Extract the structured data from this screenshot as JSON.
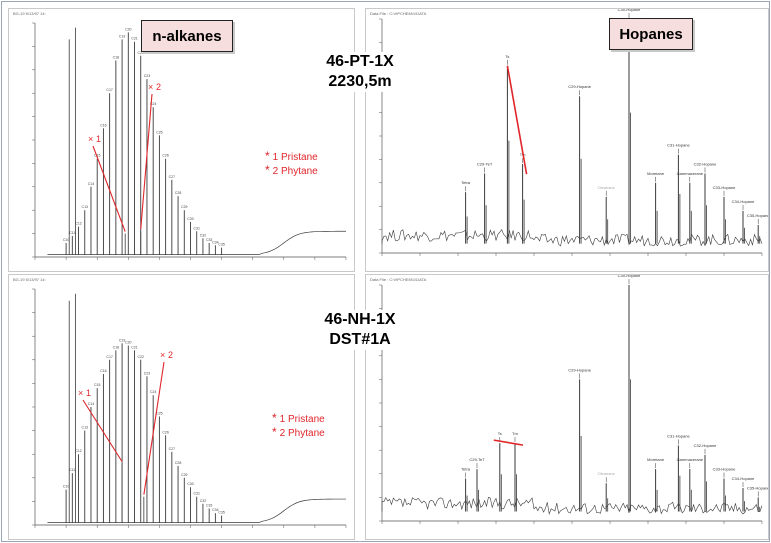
{
  "labels": {
    "nalkanes": "n-alkanes",
    "hopanes": "Hopanes",
    "well1_line1": "46-PT-1X",
    "well1_line2": "2230,5m",
    "well2_line1": "46-NH-1X",
    "well2_line2": "DST#1A"
  },
  "legend": {
    "item1": "1  Pristane",
    "item2": "2  Phytane"
  },
  "markers": {
    "m1": "1",
    "m2": "2"
  },
  "peak_names": {
    "tetra": "Tetra",
    "ts": "Ts",
    "tm": "Tm",
    "oleanane": "Oleanane",
    "moretane": "Moretane",
    "gammacerane": "Gamma -cerane",
    "c29": "C29-Hopane",
    "c30": "C30-Hopane",
    "c31": "C31-Hopane",
    "c32": "C32-Hopane",
    "c33": "C33-Hopane",
    "c34": "C34-Hopane",
    "c35": "C35-Hopane"
  },
  "colors": {
    "annotation": "#e0262b",
    "trace": "#3a3a3a",
    "tagbox_fill": "#f7dede"
  },
  "chart_data": [
    {
      "type": "line",
      "title": "",
      "xlabel": "",
      "ylabel": "",
      "xlim": [
        0,
        100
      ],
      "ylim": [
        0,
        100
      ],
      "peaks_x": [
        10,
        12,
        14,
        16,
        18,
        20,
        22,
        24,
        26,
        28,
        30,
        32,
        34,
        36,
        38,
        40,
        42,
        44,
        46,
        48,
        50,
        52,
        54,
        56,
        58,
        60
      ],
      "peaks_y": [
        6,
        9,
        13,
        20,
        30,
        42,
        55,
        70,
        84,
        93,
        96,
        92,
        86,
        76,
        64,
        52,
        42,
        33,
        26,
        20,
        15,
        11,
        8,
        6,
        5,
        4
      ],
      "peak_labels": [
        "C10",
        "C11",
        "C12",
        "C13",
        "C14",
        "C15",
        "C16",
        "C17",
        "C18",
        "C19",
        "C20",
        "C21",
        "C22",
        "C23",
        "C24",
        "C25",
        "C26",
        "C27",
        "C28",
        "C29",
        "C30",
        "C31",
        "C32",
        "C33",
        "C34",
        "C35"
      ],
      "pristane": [
        29,
        10
      ],
      "phytane": [
        34,
        11
      ],
      "tall_peaks": [
        [
          11,
          93
        ],
        [
          13,
          98
        ]
      ]
    },
    {
      "type": "line",
      "title": "",
      "xlabel": "",
      "ylabel": "",
      "xlim": [
        0,
        100
      ],
      "ylim": [
        0,
        100
      ],
      "peaks": [
        {
          "x": 22,
          "y": 26,
          "label": "Tetra"
        },
        {
          "x": 27,
          "y": 34,
          "label": "C29-TeT"
        },
        {
          "x": 33,
          "y": 80,
          "label": "Ts"
        },
        {
          "x": 37,
          "y": 38,
          "label": "Tm"
        },
        {
          "x": 52,
          "y": 67,
          "label": "C29-Hopane"
        },
        {
          "x": 59,
          "y": 24,
          "label": "Oleanane"
        },
        {
          "x": 65,
          "y": 100,
          "label": "C30-Hopane"
        },
        {
          "x": 72,
          "y": 30,
          "label": "Moretane"
        },
        {
          "x": 78,
          "y": 42,
          "label": "C31-Hopane"
        },
        {
          "x": 81,
          "y": 30,
          "label": "Gammacerane"
        },
        {
          "x": 85,
          "y": 34,
          "label": "C32-Hopane"
        },
        {
          "x": 90,
          "y": 24,
          "label": "C33-Hopane"
        },
        {
          "x": 95,
          "y": 18,
          "label": "C34-Hopane"
        },
        {
          "x": 99,
          "y": 12,
          "label": "C35-Hopane"
        }
      ]
    },
    {
      "type": "line",
      "title": "",
      "xlabel": "",
      "ylabel": "",
      "xlim": [
        0,
        100
      ],
      "ylim": [
        0,
        100
      ],
      "peaks_x": [
        10,
        12,
        14,
        16,
        18,
        20,
        22,
        24,
        26,
        28,
        30,
        32,
        34,
        36,
        38,
        40,
        42,
        44,
        46,
        48,
        50,
        52,
        54,
        56,
        58,
        60
      ],
      "peaks_y": [
        15,
        22,
        30,
        40,
        50,
        58,
        64,
        70,
        74,
        77,
        76,
        74,
        70,
        63,
        55,
        46,
        38,
        31,
        25,
        20,
        16,
        12,
        9,
        7,
        5,
        4
      ],
      "peak_labels": [
        "C10",
        "C11",
        "C12",
        "C13",
        "C14",
        "C15",
        "C16",
        "C17",
        "C18",
        "C19",
        "C20",
        "C21",
        "C22",
        "C23",
        "C24",
        "C25",
        "C26",
        "C27",
        "C28",
        "C29",
        "C30",
        "C31",
        "C32",
        "C33",
        "C34",
        "C35"
      ],
      "pristane": [
        28,
        26
      ],
      "phytane": [
        35,
        12
      ],
      "tall_peaks": [
        [
          11,
          95
        ],
        [
          13,
          98
        ]
      ]
    },
    {
      "type": "line",
      "title": "",
      "xlabel": "",
      "ylabel": "",
      "xlim": [
        0,
        100
      ],
      "ylim": [
        0,
        100
      ],
      "peaks": [
        {
          "x": 22,
          "y": 18,
          "label": "Tetra"
        },
        {
          "x": 25,
          "y": 22,
          "label": "C29-TeT"
        },
        {
          "x": 31,
          "y": 33,
          "label": "Ts"
        },
        {
          "x": 35,
          "y": 33,
          "label": "Tm"
        },
        {
          "x": 52,
          "y": 60,
          "label": "C29-Hopane"
        },
        {
          "x": 59,
          "y": 16,
          "label": "Oleanane"
        },
        {
          "x": 65,
          "y": 100,
          "label": "C30-Hopane"
        },
        {
          "x": 72,
          "y": 22,
          "label": "Moretane"
        },
        {
          "x": 78,
          "y": 32,
          "label": "C31-Hopane"
        },
        {
          "x": 81,
          "y": 22,
          "label": "Gammacerane"
        },
        {
          "x": 85,
          "y": 28,
          "label": "C32-Hopane"
        },
        {
          "x": 90,
          "y": 18,
          "label": "C33-Hopane"
        },
        {
          "x": 95,
          "y": 14,
          "label": "C34-Hopane"
        },
        {
          "x": 99,
          "y": 10,
          "label": "C35-Hopane"
        }
      ]
    }
  ]
}
